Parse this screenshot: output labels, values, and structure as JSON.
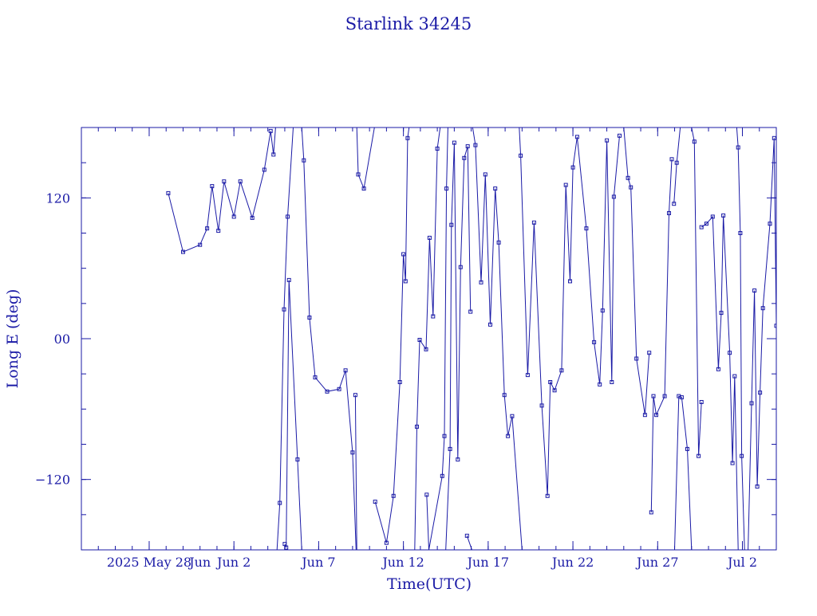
{
  "chart_data": {
    "type": "scatter",
    "title": "Starlink 34245",
    "xlabel": "Time(UTC)",
    "ylabel": "Long E (deg)",
    "xlim": [
      "2025-05-24T00:00",
      "2025-07-04T00:00"
    ],
    "ylim": [
      -180,
      180
    ],
    "yticks": [
      -120,
      0,
      120
    ],
    "ytick_labels": [
      "−120",
      "00",
      "120"
    ],
    "xticks": [
      {
        "date": "2025-05-28",
        "label": "2025 May 28"
      },
      {
        "date": "2025-06-02",
        "label": "Jun  2"
      },
      {
        "date": "2025-06-07",
        "label": "Jun  7"
      },
      {
        "date": "2025-06-12",
        "label": "Jun 12"
      },
      {
        "date": "2025-06-17",
        "label": "Jun 17"
      },
      {
        "date": "2025-06-22",
        "label": "Jun 22"
      },
      {
        "date": "2025-06-27",
        "label": "Jun 27"
      },
      {
        "date": "2025-07-02",
        "label": "Jul  2"
      }
    ],
    "extra_x_labels": [
      {
        "date": "2025-05-31",
        "label": "Jun"
      }
    ],
    "grid": false,
    "color": "#1a1aa6",
    "marker": "square",
    "line_connected": true,
    "series": [
      {
        "points": [
          [
            "2025-05-29T03:00",
            124
          ],
          [
            "2025-05-30T00:00",
            74
          ],
          [
            "2025-05-31T00:00",
            80
          ],
          [
            "2025-05-31T10:00",
            94
          ],
          [
            "2025-05-31T17:00",
            130
          ],
          [
            "2025-06-01T02:00",
            92
          ],
          [
            "2025-06-01T10:00",
            134
          ],
          [
            "2025-06-02T00:00",
            104
          ],
          [
            "2025-06-02T09:00",
            134
          ],
          [
            "2025-06-03T02:00",
            103
          ],
          [
            "2025-06-03T19:00",
            144
          ],
          [
            "2025-06-04T04:00",
            177
          ],
          [
            "2025-06-04T08:00",
            157
          ],
          [
            "2025-06-04T11:00",
            180
          ]
        ]
      },
      {
        "points": [
          [
            "2025-06-04T13:00",
            -180
          ],
          [
            "2025-06-04T17:00",
            -140
          ],
          [
            "2025-06-04T23:00",
            25
          ],
          [
            "2025-06-05T04:00",
            104
          ],
          [
            "2025-06-05T12:00",
            180
          ]
        ]
      },
      {
        "points": [
          [
            "2025-06-05T00:00",
            -175
          ],
          [
            "2025-06-05T02:00",
            -178
          ],
          [
            "2025-06-05T06:00",
            50
          ],
          [
            "2025-06-05T18:00",
            -103
          ],
          [
            "2025-06-06T00:00",
            -180
          ]
        ]
      },
      {
        "points": [
          [
            "2025-06-06T00:00",
            180
          ],
          [
            "2025-06-06T03:00",
            152
          ],
          [
            "2025-06-06T11:00",
            18
          ],
          [
            "2025-06-06T19:00",
            -33
          ],
          [
            "2025-06-07T12:00",
            -45
          ],
          [
            "2025-06-08T05:00",
            -43
          ],
          [
            "2025-06-08T14:00",
            -27
          ],
          [
            "2025-06-09T00:00",
            -97
          ],
          [
            "2025-06-09T05:00",
            -180
          ]
        ]
      },
      {
        "points": [
          [
            "2025-06-09T06:00",
            180
          ],
          [
            "2025-06-09T08:00",
            140
          ],
          [
            "2025-06-09T16:00",
            128
          ],
          [
            "2025-06-10T07:00",
            180
          ]
        ]
      },
      {
        "points": [
          [
            "2025-06-09T04:00",
            -48
          ],
          [
            "2025-06-09T06:00",
            -180
          ]
        ]
      },
      {
        "points": [
          [
            "2025-06-10T08:00",
            -139
          ],
          [
            "2025-06-11T00:00",
            -174
          ],
          [
            "2025-06-11T10:00",
            -134
          ],
          [
            "2025-06-11T19:00",
            -37
          ],
          [
            "2025-06-12T00:00",
            72
          ],
          [
            "2025-06-12T03:00",
            49
          ],
          [
            "2025-06-12T06:00",
            171
          ],
          [
            "2025-06-12T08:00",
            180
          ]
        ]
      },
      {
        "points": [
          [
            "2025-06-12T16:00",
            -180
          ],
          [
            "2025-06-12T19:00",
            -75
          ],
          [
            "2025-06-12T23:00",
            -1
          ],
          [
            "2025-06-13T08:00",
            -9
          ],
          [
            "2025-06-13T13:00",
            86
          ],
          [
            "2025-06-13T18:00",
            19
          ],
          [
            "2025-06-14T00:00",
            162
          ],
          [
            "2025-06-14T04:00",
            180
          ]
        ]
      },
      {
        "points": [
          [
            "2025-06-13T09:00",
            -133
          ],
          [
            "2025-06-13T12:00",
            -180
          ],
          [
            "2025-06-14T07:00",
            -117
          ],
          [
            "2025-06-14T10:00",
            -83
          ],
          [
            "2025-06-14T13:00",
            128
          ],
          [
            "2025-06-14T15:00",
            180
          ]
        ]
      },
      {
        "points": [
          [
            "2025-06-14T12:00",
            -180
          ],
          [
            "2025-06-14T18:00",
            -94
          ],
          [
            "2025-06-14T20:00",
            97
          ],
          [
            "2025-06-15T00:00",
            167
          ],
          [
            "2025-06-15T05:00",
            -103
          ],
          [
            "2025-06-15T09:00",
            61
          ],
          [
            "2025-06-15T14:00",
            154
          ],
          [
            "2025-06-15T19:00",
            164
          ],
          [
            "2025-06-15T23:00",
            23
          ]
        ]
      },
      {
        "points": [
          [
            "2025-06-15T18:00",
            -168
          ],
          [
            "2025-06-16T01:00",
            -180
          ]
        ]
      },
      {
        "points": [
          [
            "2025-06-16T02:00",
            180
          ],
          [
            "2025-06-16T06:00",
            165
          ],
          [
            "2025-06-16T14:00",
            48
          ],
          [
            "2025-06-16T20:00",
            140
          ],
          [
            "2025-06-17T03:00",
            12
          ],
          [
            "2025-06-17T10:00",
            128
          ],
          [
            "2025-06-17T15:00",
            82
          ],
          [
            "2025-06-17T23:00",
            -48
          ],
          [
            "2025-06-18T04:00",
            -83
          ],
          [
            "2025-06-18T10:00",
            -66
          ],
          [
            "2025-06-19T00:00",
            -180
          ]
        ]
      },
      {
        "points": [
          [
            "2025-06-18T20:00",
            180
          ],
          [
            "2025-06-18T22:00",
            156
          ],
          [
            "2025-06-19T08:00",
            -31
          ],
          [
            "2025-06-19T17:00",
            99
          ],
          [
            "2025-06-20T04:00",
            -57
          ],
          [
            "2025-06-20T12:00",
            -134
          ],
          [
            "2025-06-20T16:00",
            -37
          ],
          [
            "2025-06-20T22:00",
            -44
          ],
          [
            "2025-06-21T08:00",
            -27
          ],
          [
            "2025-06-21T14:00",
            131
          ],
          [
            "2025-06-21T20:00",
            49
          ],
          [
            "2025-06-22T00:00",
            146
          ],
          [
            "2025-06-22T06:00",
            172
          ],
          [
            "2025-06-22T19:00",
            94
          ],
          [
            "2025-06-23T06:00",
            -3
          ],
          [
            "2025-06-23T14:00",
            -39
          ],
          [
            "2025-06-23T18:00",
            24
          ],
          [
            "2025-06-24T00:00",
            169
          ],
          [
            "2025-06-24T07:00",
            -37
          ],
          [
            "2025-06-24T10:00",
            121
          ],
          [
            "2025-06-24T18:00",
            173
          ]
        ]
      },
      {
        "points": [
          [
            "2025-06-25T00:00",
            180
          ],
          [
            "2025-06-25T06:00",
            137
          ],
          [
            "2025-06-25T10:00",
            129
          ],
          [
            "2025-06-25T18:00",
            -17
          ],
          [
            "2025-06-26T06:00",
            -65
          ],
          [
            "2025-06-26T12:00",
            -12
          ]
        ]
      },
      {
        "points": [
          [
            "2025-06-26T15:00",
            -148
          ],
          [
            "2025-06-26T18:00",
            -49
          ],
          [
            "2025-06-26T22:00",
            -65
          ],
          [
            "2025-06-27T10:00",
            -49
          ],
          [
            "2025-06-27T16:00",
            107
          ],
          [
            "2025-06-27T20:00",
            153
          ]
        ]
      },
      {
        "points": [
          [
            "2025-06-27T23:00",
            115
          ],
          [
            "2025-06-28T03:00",
            150
          ],
          [
            "2025-06-28T08:00",
            180
          ]
        ]
      },
      {
        "points": [
          [
            "2025-06-28T00:00",
            -180
          ],
          [
            "2025-06-28T06:00",
            -49
          ],
          [
            "2025-06-28T10:00",
            -50
          ],
          [
            "2025-06-28T18:00",
            -94
          ],
          [
            "2025-06-29T00:00",
            -180
          ]
        ]
      },
      {
        "points": [
          [
            "2025-06-29T00:00",
            180
          ],
          [
            "2025-06-29T04:00",
            168
          ],
          [
            "2025-06-29T10:00",
            -100
          ],
          [
            "2025-06-29T14:00",
            -54
          ]
        ]
      },
      {
        "points": [
          [
            "2025-06-29T14:00",
            95
          ],
          [
            "2025-06-29T21:00",
            98
          ],
          [
            "2025-06-30T06:00",
            104
          ],
          [
            "2025-06-30T14:00",
            -26
          ],
          [
            "2025-06-30T18:00",
            22
          ],
          [
            "2025-06-30T21:00",
            105
          ],
          [
            "2025-07-01T06:00",
            -12
          ],
          [
            "2025-07-01T10:00",
            -106
          ],
          [
            "2025-07-01T13:00",
            -32
          ],
          [
            "2025-07-01T18:00",
            -180
          ]
        ]
      },
      {
        "points": [
          [
            "2025-07-01T16:00",
            180
          ],
          [
            "2025-07-01T18:00",
            163
          ],
          [
            "2025-07-01T21:00",
            90
          ],
          [
            "2025-07-01T23:00",
            -100
          ],
          [
            "2025-07-02T03:00",
            -180
          ]
        ]
      },
      {
        "points": [
          [
            "2025-07-02T08:00",
            -180
          ],
          [
            "2025-07-02T13:00",
            -55
          ],
          [
            "2025-07-02T17:00",
            41
          ],
          [
            "2025-07-02T21:00",
            -126
          ],
          [
            "2025-07-03T01:00",
            -46
          ],
          [
            "2025-07-03T05:00",
            26
          ],
          [
            "2025-07-03T15:00",
            98
          ],
          [
            "2025-07-03T21:00",
            171
          ],
          [
            "2025-07-04T00:00",
            11
          ],
          [
            "2025-07-04T05:00",
            107
          ]
        ]
      }
    ]
  }
}
